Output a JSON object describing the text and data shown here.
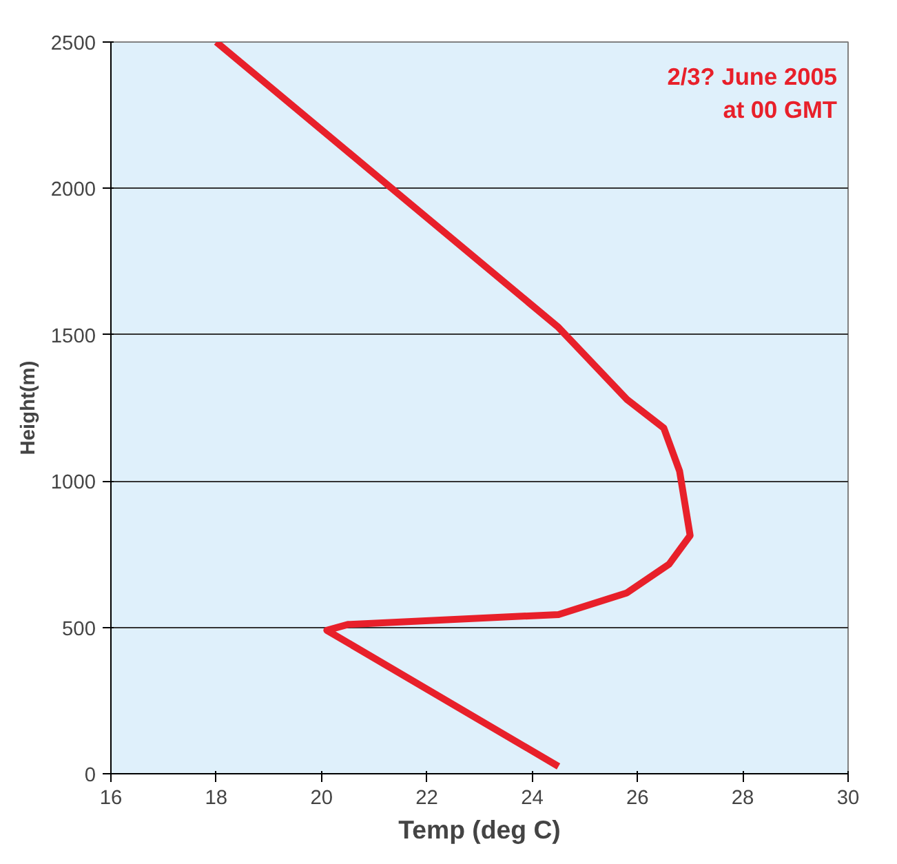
{
  "chart_data": {
    "type": "line",
    "xlabel": "Temp (deg C)",
    "ylabel": "Height(m)",
    "x": [
      24.5,
      20.1,
      20.5,
      24.5,
      25.8,
      26.6,
      27.0,
      26.8,
      26.5,
      25.8,
      24.5,
      18.0
    ],
    "series": [
      {
        "color": "#e8202a",
        "values": [
          25,
          490,
          510,
          544,
          618,
          716,
          814,
          1034,
          1181,
          1279,
          1525,
          2500
        ]
      }
    ],
    "xlim": [
      16,
      30
    ],
    "xticks": [
      16,
      18,
      20,
      22,
      24,
      26,
      28,
      30
    ],
    "ylim": [
      0,
      2500
    ],
    "yticks": [
      0,
      500,
      1000,
      1500,
      2000,
      2500
    ],
    "grid": "y",
    "marker": "none",
    "line_style": "solid",
    "annotations": [
      "2/3? June 2005\nat 00 GMT"
    ]
  }
}
